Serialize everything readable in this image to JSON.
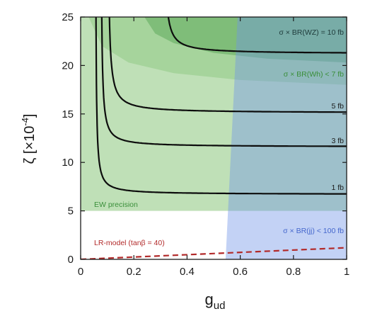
{
  "chart_data": {
    "type": "line",
    "xlabel": "g",
    "xlabel_sub": "ud",
    "ylabel": "ζ  [×10",
    "ylabel_sup": "-4",
    "ylabel_close": "]",
    "xlim": [
      0,
      1
    ],
    "ylim": [
      0,
      25
    ],
    "xticks": [
      0,
      0.2,
      0.4,
      0.6,
      0.8,
      1
    ],
    "xtick_labels": [
      "0",
      "0.2",
      "0.4",
      "0.6",
      "0.8",
      "1"
    ],
    "yticks": [
      0,
      5,
      10,
      15,
      20,
      25
    ],
    "ytick_labels": [
      "0",
      "5",
      "10",
      "15",
      "20",
      "25"
    ],
    "grid": false,
    "regions": [
      {
        "label": "EW precision",
        "color": "#bfe0b7",
        "label_color": "#3a8f3a"
      },
      {
        "label": "σ × BR(Wh) < 7 fb",
        "color": "#a6d49c",
        "label_color": "#3a8f3a"
      },
      {
        "label": "σ × BR(Wh) < 7 fb",
        "color": "#7fbd79",
        "label_color": "#3a8f3a"
      },
      {
        "label": "σ × BR(jj) < 100 fb",
        "color": "#6f93e6",
        "opacity": 0.42,
        "label_color": "#4466cc"
      }
    ],
    "series": [
      {
        "name": "1 fb",
        "asymptote": 6.7,
        "x0": 0.055,
        "k": 0.05,
        "color": "#0d0d0d"
      },
      {
        "name": "3 fb",
        "asymptote": 11.6,
        "x0": 0.075,
        "k": 0.06,
        "color": "#0d0d0d"
      },
      {
        "name": "5 fb",
        "asymptote": 15.1,
        "x0": 0.1,
        "k": 0.08,
        "color": "#0d0d0d"
      },
      {
        "name": "σ × BR(WZ) = 10 fb",
        "asymptote": 21.2,
        "x0": 0.31,
        "k": 0.075,
        "color": "#0d0d0d"
      },
      {
        "name": "LR-model (tanβ = 40)",
        "x": [
          0,
          1
        ],
        "y": [
          0,
          1.2
        ],
        "color": "#b22a2a",
        "dashed": true
      }
    ],
    "annotations": [
      {
        "text": "σ × BR(WZ) = 10 fb",
        "color": "#1e3a3a"
      },
      {
        "text": "σ × BR(Wh) < 7 fb",
        "color": "#3a8f3a"
      },
      {
        "text": "5 fb",
        "color": "#1a1a1a"
      },
      {
        "text": "3 fb",
        "color": "#1a1a1a"
      },
      {
        "text": "1 fb",
        "color": "#1a1a1a"
      },
      {
        "text": "EW precision",
        "color": "#3a8f3a"
      },
      {
        "text": "σ × BR(jj) < 100 fb",
        "color": "#4466cc"
      },
      {
        "text": "LR-model (tanβ = 40)",
        "color": "#b22a2a"
      }
    ]
  }
}
